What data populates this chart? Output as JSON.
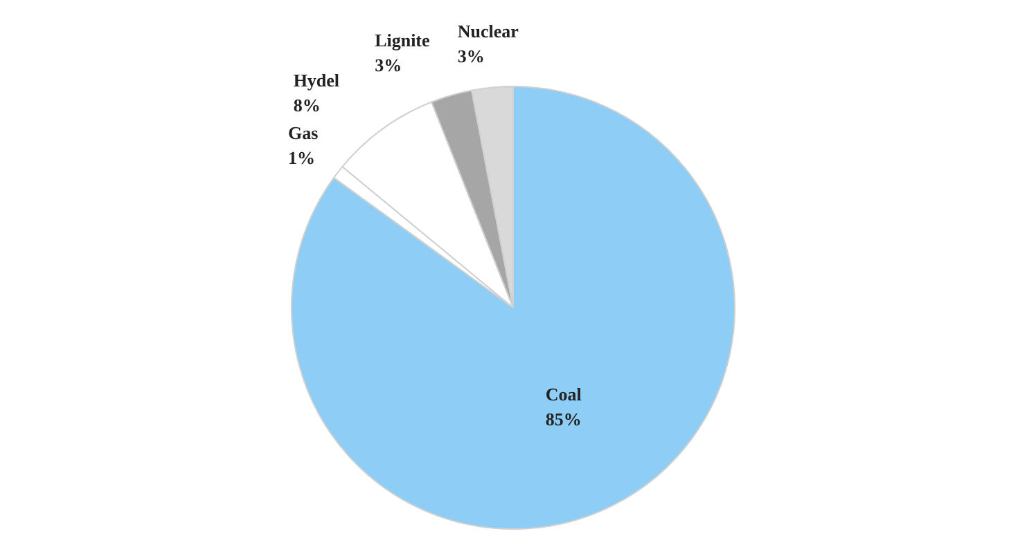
{
  "chart_data": {
    "type": "pie",
    "categories": [
      "Coal",
      "Gas",
      "Hydel",
      "Lignite",
      "Nuclear"
    ],
    "values": [
      85,
      1,
      8,
      3,
      3
    ],
    "value_labels": [
      "85%",
      "1%",
      "8%",
      "3%",
      "3%"
    ],
    "colors": [
      "#8ecdf5",
      "#ffffff",
      "#ffffff",
      "#a6a6a6",
      "#d9d9d9"
    ]
  }
}
